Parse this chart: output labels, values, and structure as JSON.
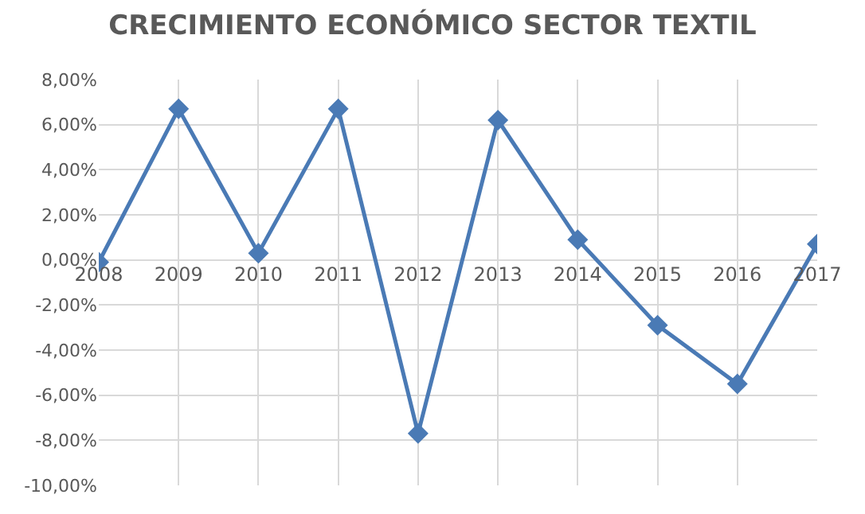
{
  "chart_data": {
    "type": "line",
    "title": "CRECIMIENTO ECONÓMICO SECTOR TEXTIL",
    "categories": [
      "2008",
      "2009",
      "2010",
      "2011",
      "2012",
      "2013",
      "2014",
      "2015",
      "2016",
      "2017"
    ],
    "values": [
      -0.1,
      6.7,
      0.3,
      6.7,
      -7.7,
      6.2,
      0.9,
      -2.9,
      -5.5,
      0.7
    ],
    "color": "#4a7ab5",
    "marker": "diamond",
    "line_style": "solid",
    "grid": true,
    "ylim": [
      -10,
      8
    ],
    "yticks": [
      {
        "value": -10,
        "label": "-10,00%"
      },
      {
        "value": -8,
        "label": "-8,00%"
      },
      {
        "value": -6,
        "label": "-6,00%"
      },
      {
        "value": -4,
        "label": "-4,00%"
      },
      {
        "value": -2,
        "label": "-2,00%"
      },
      {
        "value": 0,
        "label": "0,00%"
      },
      {
        "value": 2,
        "label": "2,00%"
      },
      {
        "value": 4,
        "label": "4,00%"
      },
      {
        "value": 6,
        "label": "6,00%"
      },
      {
        "value": 8,
        "label": "8,00%"
      }
    ]
  }
}
